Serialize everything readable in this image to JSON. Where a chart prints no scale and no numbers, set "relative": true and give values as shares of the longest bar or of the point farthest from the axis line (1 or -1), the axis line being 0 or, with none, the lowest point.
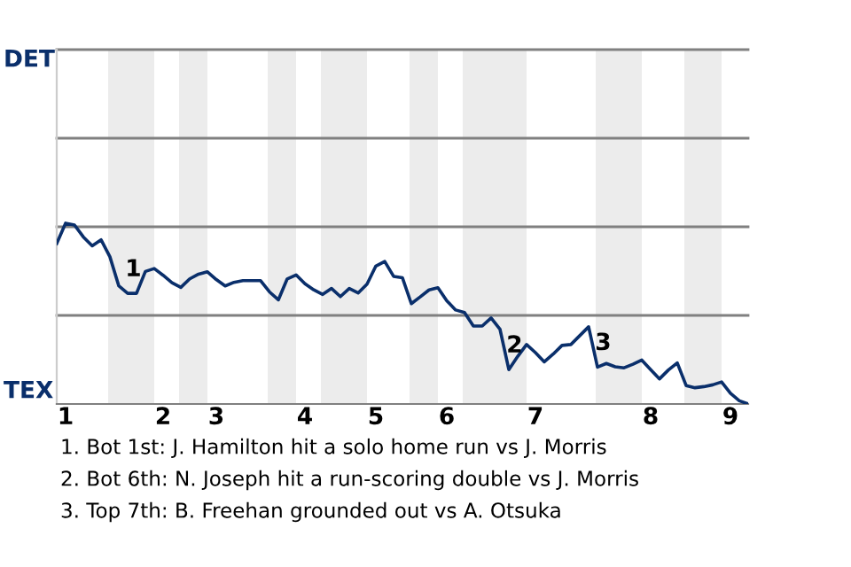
{
  "chart_data": {
    "type": "line",
    "relative": true,
    "categories": [
      null,
      "1",
      null,
      null,
      null,
      null,
      null,
      null,
      null,
      null,
      null,
      null,
      "2",
      null,
      null,
      null,
      null,
      null,
      "3",
      null,
      null,
      null,
      null,
      null,
      null,
      null,
      null,
      null,
      "4",
      null,
      null,
      null,
      null,
      null,
      null,
      null,
      "5",
      null,
      null,
      null,
      null,
      null,
      null,
      null,
      "6",
      null,
      null,
      null,
      null,
      null,
      null,
      null,
      null,
      null,
      "7",
      null,
      null,
      null,
      null,
      null,
      null,
      null,
      null,
      null,
      null,
      null,
      null,
      "8",
      null,
      null,
      null,
      null,
      null,
      null,
      null,
      null,
      "9",
      null,
      null
    ],
    "series": [
      {
        "color": "#0a2f6b",
        "values": [
          0.888,
          1,
          0.99,
          0.924,
          0.875,
          0.908,
          0.814,
          0.653,
          0.612,
          0.612,
          0.733,
          0.749,
          0.712,
          0.671,
          0.645,
          0.692,
          0.718,
          0.731,
          0.688,
          0.653,
          0.673,
          0.682,
          0.682,
          0.682,
          0.62,
          0.576,
          0.692,
          0.714,
          0.665,
          0.631,
          0.606,
          0.639,
          0.594,
          0.639,
          0.614,
          0.663,
          0.763,
          0.788,
          0.706,
          0.698,
          0.555,
          0.592,
          0.631,
          0.643,
          0.571,
          0.52,
          0.506,
          0.431,
          0.431,
          0.476,
          0.414,
          0.19,
          0.263,
          0.329,
          0.284,
          0.233,
          0.276,
          0.324,
          0.329,
          0.378,
          0.427,
          0.204,
          0.224,
          0.206,
          0.2,
          0.22,
          0.243,
          0.19,
          0.139,
          0.188,
          0.227,
          0.102,
          0.09,
          0.096,
          0.106,
          0.122,
          0.059,
          0.018,
          0
        ],
        "line_style": "solid"
      }
    ],
    "ref_lines": [
      {
        "axis": "y",
        "value": 0.49,
        "color": "#808080"
      },
      {
        "axis": "y",
        "value": 0.98,
        "color": "#808080"
      },
      {
        "axis": "y",
        "value": 1.47,
        "color": "#808080"
      },
      {
        "axis": "y",
        "value": 1.96,
        "color": "#808080"
      }
    ],
    "marker": "none",
    "annotations": [
      "DET",
      "TEX",
      {
        "text": "1",
        "y": 0.612
      },
      {
        "text": "2",
        "y": 0.19
      },
      {
        "text": "3",
        "y": 0.204
      },
      "1. Bot 1st: J. Hamilton hit a solo home run vs J. Morris",
      "2. Bot 6th: N. Joseph hit a run-scoring double vs J. Morris",
      "3. Top 7th: B. Freehan grounded out vs A. Otsuka"
    ]
  }
}
